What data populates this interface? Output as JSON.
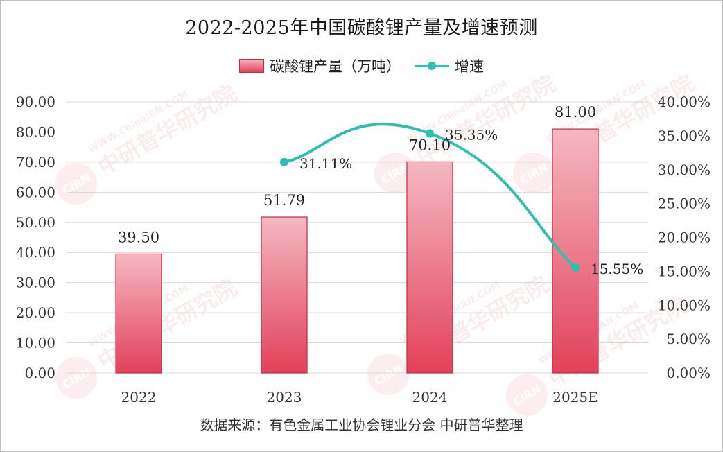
{
  "chart_data": {
    "type": "bar",
    "title": "2022-2025年中国碳酸锂产量及增速预测",
    "categories": [
      "2022",
      "2023",
      "2024",
      "2025E"
    ],
    "series": [
      {
        "name": "碳酸锂产量（万吨）",
        "type": "bar",
        "axis": "left",
        "values": [
          39.5,
          51.79,
          70.1,
          81.0
        ],
        "labels": [
          "39.50",
          "51.79",
          "70.10",
          "81.00"
        ],
        "color": "#e3425a"
      },
      {
        "name": "增速",
        "type": "line",
        "axis": "right",
        "values": [
          null,
          31.11,
          35.35,
          15.55
        ],
        "labels": [
          "",
          "31.11%",
          "35.35%",
          "15.55%"
        ],
        "color": "#2fbfb0"
      }
    ],
    "y_left": {
      "ylim": [
        0,
        90
      ],
      "ticks": [
        "0.00",
        "10.00",
        "20.00",
        "30.00",
        "40.00",
        "50.00",
        "60.00",
        "70.00",
        "80.00",
        "90.00"
      ]
    },
    "y_right": {
      "ylim": [
        0,
        40
      ],
      "ticks": [
        "0.00%",
        "5.00%",
        "10.00%",
        "15.00%",
        "20.00%",
        "25.00%",
        "30.00%",
        "35.00%",
        "40.00%"
      ]
    },
    "grid": true,
    "legend_position": "top"
  },
  "source": "数据来源：有色金属工业协会锂业分会 中研普华整理",
  "watermark": {
    "logo": "CIRN",
    "text": "中研普华研究院",
    "url": "WWW.ChinaIRN.COM"
  }
}
